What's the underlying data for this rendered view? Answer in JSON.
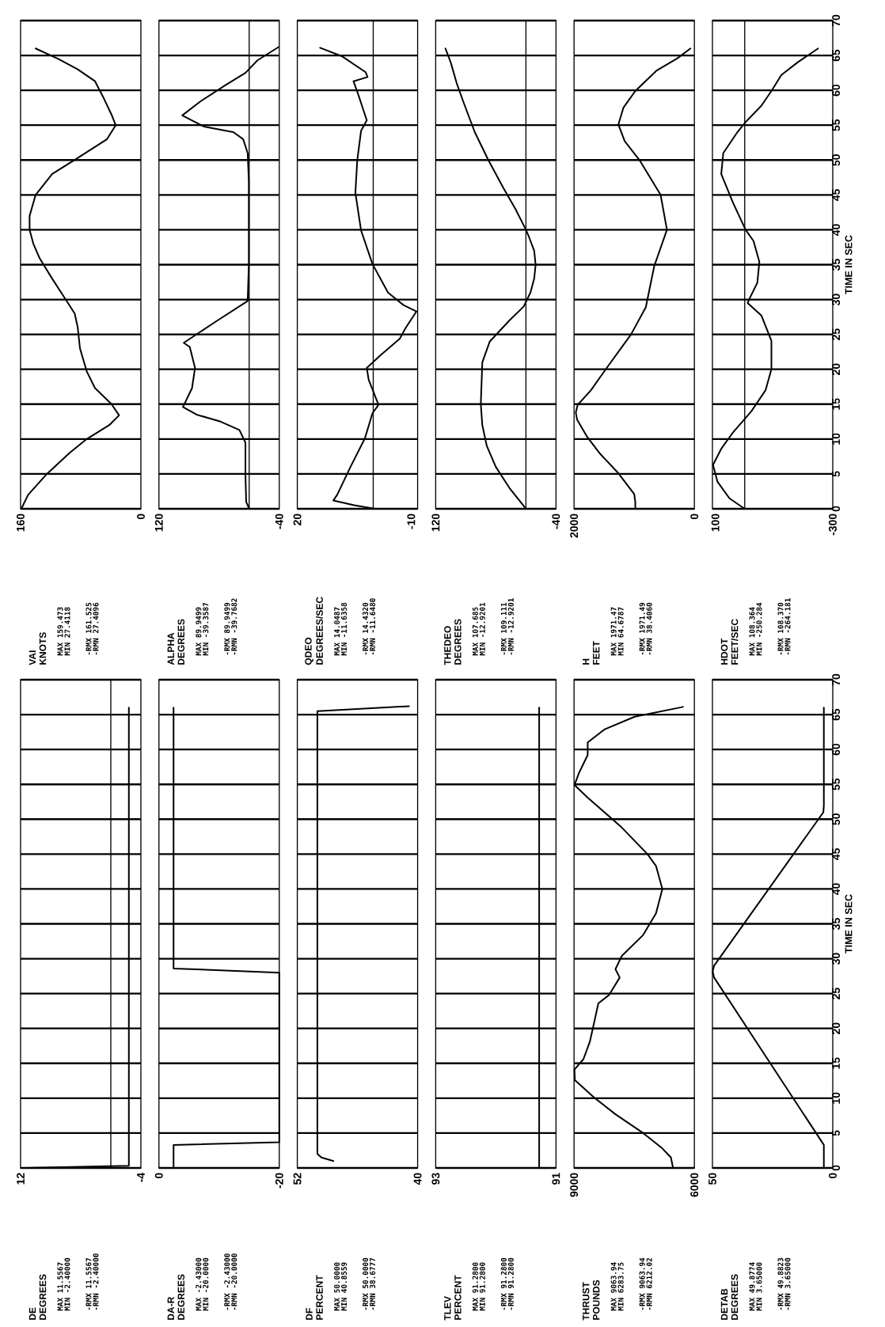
{
  "chart_data": [
    {
      "type": "line",
      "title": "DE",
      "subtitle": "DEGREES",
      "annotations": [
        "MAX 11.5567",
        "MIN -2.40000",
        "-RMX 11.5567",
        "-RMN -2.40000"
      ],
      "color": "#000000",
      "x": [
        11.5567,
        -2.4,
        -2.4
      ],
      "values": [
        0,
        0.3,
        66
      ],
      "xlim": [
        12,
        -4
      ],
      "xticks": [
        12,
        -4
      ],
      "ylim": [
        0,
        70
      ],
      "yticks": [
        0,
        5,
        10,
        15,
        20,
        25,
        30,
        35,
        40,
        45,
        50,
        55,
        60,
        65,
        70
      ],
      "grid": "y",
      "tick_labels": "x",
      "ref_lines": [
        {
          "axis": "x",
          "value": 0
        }
      ]
    },
    {
      "type": "line",
      "title": "DA-R",
      "subtitle": "DEGREES",
      "annotations": [
        "MAX -2.43000",
        "MIN -20.0000",
        "-RMX -2.43000",
        "-RMN -20.0000"
      ],
      "color": "#000000",
      "x": [
        -2.43,
        -2.43,
        -20,
        -20,
        -2.43,
        -2.43
      ],
      "values": [
        0,
        3.3,
        3.7,
        28,
        28.6,
        66
      ],
      "xlim": [
        0,
        -20
      ],
      "xticks": [
        0,
        -20
      ],
      "ylim": [
        0,
        70
      ],
      "yticks": [
        0,
        5,
        10,
        15,
        20,
        25,
        30,
        35,
        40,
        45,
        50,
        55,
        60,
        65,
        70
      ],
      "grid": "y",
      "tick_labels": "x"
    },
    {
      "type": "line",
      "title": "DF",
      "subtitle": "PERCENT",
      "annotations": [
        "MAX 50.0000",
        "MIN 40.8559",
        "-RMX 50.0000",
        "-RMN 38.6777"
      ],
      "color": "#000000",
      "x": [
        48.4,
        49.6,
        50,
        50,
        40.86
      ],
      "values": [
        1,
        1.5,
        2,
        65.5,
        66.2
      ],
      "xlim": [
        52,
        40
      ],
      "xticks": [
        52,
        40
      ],
      "ylim": [
        0,
        70
      ],
      "yticks": [
        0,
        5,
        10,
        15,
        20,
        25,
        30,
        35,
        40,
        45,
        50,
        55,
        60,
        65,
        70
      ],
      "grid": "y",
      "tick_labels": "x"
    },
    {
      "type": "line",
      "title": "TLEV",
      "subtitle": "PERCENT",
      "annotations": [
        "MAX 91.2800",
        "MIN 91.2800",
        "-RMX 91.2800",
        "-RMN 91.2800"
      ],
      "color": "#000000",
      "x": [
        91.28,
        91.28
      ],
      "values": [
        0,
        66
      ],
      "xlim": [
        93,
        91
      ],
      "xticks": [
        93,
        91
      ],
      "ylim": [
        0,
        70
      ],
      "yticks": [
        0,
        5,
        10,
        15,
        20,
        25,
        30,
        35,
        40,
        45,
        50,
        55,
        60,
        65,
        70
      ],
      "grid": "y",
      "tick_labels": "x"
    },
    {
      "type": "line",
      "title": "THRUST",
      "subtitle": "POUNDS",
      "annotations": [
        "MAX 9063.94",
        "MIN 6283.75",
        "-RMX 9063.94",
        "-RMN 6212.02"
      ],
      "color": "#000000",
      "x": [
        6532,
        6585,
        6798,
        7277,
        7968,
        8500,
        8979,
        8990,
        8766,
        8606,
        8532,
        8394,
        8128,
        7862,
        7968,
        7809,
        7277,
        6957,
        6798,
        6957,
        7170,
        7809,
        8660,
        8990,
        8872,
        8660,
        8660,
        8234,
        7489,
        6284
      ],
      "values": [
        0,
        1.5,
        2.8,
        5,
        7.7,
        10.1,
        12.6,
        14.1,
        15.6,
        18.1,
        20,
        23.6,
        24.8,
        27.3,
        28.5,
        30.4,
        33.4,
        36.5,
        40,
        43.3,
        45,
        48.8,
        53.1,
        54.9,
        56.7,
        59.2,
        61,
        62.9,
        64.7,
        66.1
      ],
      "xlim": [
        9000,
        6000
      ],
      "xticks": [
        9000,
        6000
      ],
      "ylim": [
        0,
        70
      ],
      "yticks": [
        0,
        5,
        10,
        15,
        20,
        25,
        30,
        35,
        40,
        45,
        50,
        55,
        60,
        65,
        70
      ],
      "grid": "y",
      "tick_labels": "x"
    },
    {
      "type": "line",
      "title": "DETAB",
      "subtitle": "DEGREES",
      "ylabel": "TIME IN SEC",
      "annotations": [
        "MAX 49.8774",
        "MIN 3.65000",
        "-RMX 49.8823",
        "-RMN 3.65000"
      ],
      "color": "#000000",
      "x": [
        3.7,
        3.7,
        49.3,
        49.9,
        49.3,
        3.9,
        3.7,
        3.7
      ],
      "values": [
        0,
        3.3,
        27.3,
        28.2,
        29,
        51,
        52,
        66
      ],
      "xlim": [
        50,
        0
      ],
      "xticks": [
        50,
        0
      ],
      "ylim": [
        0,
        70
      ],
      "yticks": [
        0,
        5,
        10,
        15,
        20,
        25,
        30,
        35,
        40,
        45,
        50,
        55,
        60,
        65,
        70
      ],
      "grid": "y"
    },
    {
      "type": "line",
      "title": "VAI",
      "subtitle": "KNOTS",
      "annotations": [
        "MAX 159.473",
        "MIN 27.4118",
        "-RMX 161.525",
        "-RMN 27.4096"
      ],
      "color": "#000000",
      "x": [
        159,
        150,
        125,
        95,
        72,
        42,
        29,
        39,
        61,
        72,
        81,
        84,
        88,
        100,
        118,
        135,
        143,
        148,
        148,
        140,
        118,
        84,
        45,
        33.5,
        39,
        50,
        61,
        84,
        110,
        140
      ],
      "values": [
        0,
        2,
        5,
        8,
        10,
        12,
        13.4,
        15,
        17.3,
        19.7,
        23,
        26,
        28,
        30,
        33,
        36,
        38,
        40,
        42,
        45,
        48,
        50.3,
        53,
        55,
        56.5,
        59,
        61.3,
        63,
        64.5,
        66
      ],
      "xlim": [
        160,
        0
      ],
      "xticks": [
        160,
        0
      ],
      "ylim": [
        0,
        70
      ],
      "yticks": [
        0,
        5,
        10,
        15,
        20,
        25,
        30,
        35,
        40,
        45,
        50,
        55,
        60,
        65,
        70
      ],
      "grid": "y",
      "tick_labels": "x"
    },
    {
      "type": "line",
      "title": "ALPHA",
      "subtitle": "DEGREES",
      "annotations": [
        "MAX 89.9499",
        "MIN -39.3587",
        "-RMX 89.9499",
        "-RMN -39.7682"
      ],
      "color": "#000000",
      "x": [
        0,
        4,
        5,
        5,
        13,
        38,
        70,
        88,
        76,
        72,
        79,
        87,
        45,
        2,
        0.5,
        0.5,
        2,
        8,
        21,
        60,
        89,
        65,
        32,
        5,
        -11,
        -39
      ],
      "values": [
        0,
        1,
        5,
        9.5,
        11.3,
        12.5,
        13.5,
        14.6,
        17.3,
        20.2,
        23.2,
        23.8,
        26.8,
        29.8,
        35,
        47,
        51,
        53,
        54,
        54.8,
        56.4,
        58.4,
        60.7,
        62.5,
        64.3,
        66.2
      ],
      "xlim": [
        120,
        -40
      ],
      "xticks": [
        120,
        -40
      ],
      "ylim": [
        0,
        70
      ],
      "yticks": [
        0,
        5,
        10,
        15,
        20,
        25,
        30,
        35,
        40,
        45,
        50,
        55,
        60,
        65,
        70
      ],
      "grid": "y",
      "tick_labels": "x",
      "ref_lines": [
        {
          "axis": "x",
          "value": 0
        }
      ]
    },
    {
      "type": "line",
      "title": "QDEO",
      "subtitle": "DEGREES/SEC",
      "annotations": [
        "MAX 14.0487",
        "MIN -11.6358",
        "-RMX 14.4320",
        "-RMN -11.6480"
      ],
      "color": "#000000",
      "x": [
        -0.5,
        5,
        10.5,
        9.5,
        6,
        2.2,
        0.2,
        -1.4,
        1.2,
        1.7,
        -1.9,
        -7,
        -8.5,
        -11.4,
        -8,
        -3.9,
        0.2,
        3.2,
        4.7,
        4.2,
        3.2,
        1.7,
        3.7,
        5.2,
        1.5,
        2,
        8.3,
        14
      ],
      "values": [
        0,
        0.5,
        1.2,
        2,
        6,
        10.1,
        13.7,
        14.9,
        18.5,
        20.2,
        22,
        24.4,
        25.9,
        28.3,
        29.2,
        31,
        35.1,
        39.9,
        45.3,
        50,
        54.2,
        55.7,
        59,
        61.3,
        61.9,
        62.6,
        64.9,
        66.1
      ],
      "xlim": [
        20,
        -11.7
      ],
      "xticks": [
        20,
        -10
      ],
      "ylim": [
        0,
        70
      ],
      "yticks": [
        0,
        5,
        10,
        15,
        20,
        25,
        30,
        35,
        40,
        45,
        50,
        55,
        60,
        65,
        70
      ],
      "grid": "y",
      "tick_labels": "x",
      "ref_lines": [
        {
          "axis": "x",
          "value": 0
        }
      ]
    },
    {
      "type": "line",
      "title": "THEDEO",
      "subtitle": "DEGREES",
      "annotations": [
        "MAX 107.685",
        "MIN -12.9201",
        "-RMX 109.111",
        "-RMN -12.9201"
      ],
      "color": "#000000",
      "x": [
        0,
        22,
        40,
        52,
        58,
        60,
        59,
        58,
        48,
        22,
        3,
        -6,
        -11,
        -12.9,
        -11,
        -4,
        0,
        14,
        30,
        50,
        68,
        82,
        92,
        100,
        107
      ],
      "values": [
        0,
        3,
        6,
        9,
        12,
        15,
        18,
        21,
        24,
        27,
        29,
        31,
        33,
        35,
        37,
        39,
        40,
        43,
        46,
        50,
        54,
        58,
        61,
        64,
        66
      ],
      "xlim": [
        120,
        -40
      ],
      "xticks": [
        120,
        -40
      ],
      "ylim": [
        0,
        70
      ],
      "yticks": [
        0,
        5,
        10,
        15,
        20,
        25,
        30,
        35,
        40,
        45,
        50,
        55,
        60,
        65,
        70
      ],
      "grid": "y",
      "tick_labels": "x",
      "ref_lines": [
        {
          "axis": "x",
          "value": 0
        }
      ]
    },
    {
      "type": "line",
      "title": "H",
      "subtitle": "FEET",
      "annotations": [
        "MAX 1971.47",
        "MIN 64.6787",
        "-RMX 1971.49",
        "-RMN 38.4060"
      ],
      "color": "#000000",
      "x": [
        982,
        982,
        1000,
        1263,
        1579,
        1789,
        1950,
        1971,
        1940,
        1719,
        1474,
        1053,
        807,
        667,
        456,
        561,
        912,
        1158,
        1263,
        1180,
        982,
        632,
        281,
        65
      ],
      "values": [
        0,
        1,
        2.1,
        5.1,
        8,
        10.4,
        12.8,
        13.8,
        14.9,
        17,
        20,
        25,
        28.9,
        34.8,
        40,
        45,
        50,
        52.7,
        55.1,
        57.5,
        59.9,
        62.8,
        64.6,
        66
      ],
      "xlim": [
        2000,
        0
      ],
      "xticks": [
        2000,
        0
      ],
      "ylim": [
        0,
        70
      ],
      "yticks": [
        0,
        5,
        10,
        15,
        20,
        25,
        30,
        35,
        40,
        45,
        50,
        55,
        60,
        65,
        70
      ],
      "grid": "y",
      "tick_labels": "x"
    },
    {
      "type": "line",
      "title": "HDOT",
      "subtitle": "FEET/SEC",
      "ylabel": "TIME IN SEC",
      "annotations": [
        "MAX 108.364",
        "MIN -250.284",
        "-RMX 108.370",
        "-RMN -264.181"
      ],
      "color": "#000000",
      "x": [
        0,
        52,
        93,
        108,
        80,
        39,
        -23,
        -71,
        -91,
        -91,
        -57,
        -10,
        -16,
        -43,
        -50,
        -30,
        -3,
        39,
        80,
        73,
        25,
        -2,
        -57,
        -91,
        -125,
        -180,
        -250
      ],
      "values": [
        0,
        1.5,
        3.9,
        6.3,
        8.6,
        11,
        14,
        17,
        20,
        24.1,
        27.7,
        29.5,
        30.1,
        32.4,
        35.4,
        38.4,
        40,
        43.8,
        48,
        51,
        54,
        55.4,
        57.8,
        59.9,
        62.2,
        64,
        66
      ],
      "xlim": [
        110,
        -300
      ],
      "xticks": [
        100,
        -300
      ],
      "ylim": [
        0,
        70
      ],
      "yticks": [
        0,
        5,
        10,
        15,
        20,
        25,
        30,
        35,
        40,
        45,
        50,
        55,
        60,
        65,
        70
      ],
      "grid": "y",
      "ref_lines": [
        {
          "axis": "x",
          "value": 0
        }
      ]
    }
  ]
}
